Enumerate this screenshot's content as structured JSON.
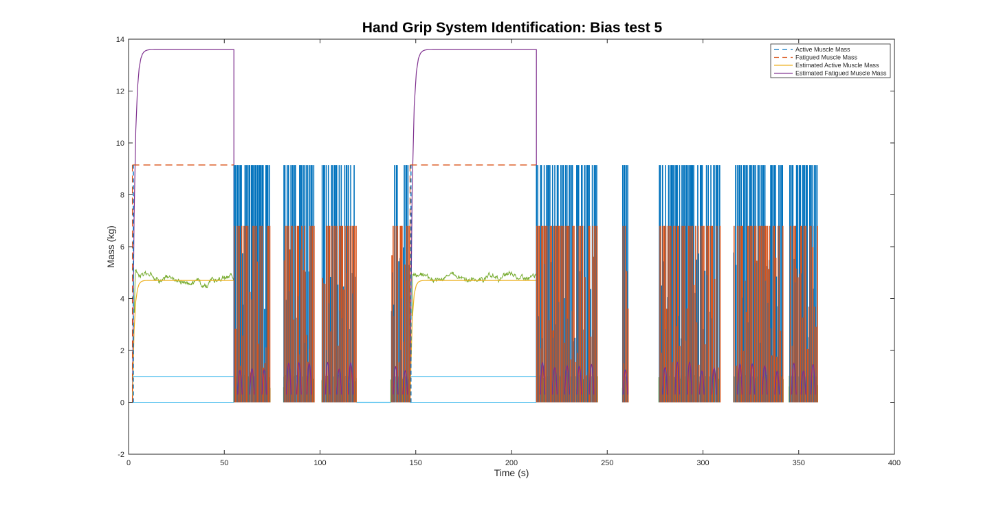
{
  "chart_data": {
    "type": "line",
    "title": "Hand Grip System Identification: Bias test 5",
    "xlabel": "Time (s)",
    "ylabel": "Mass (kg)",
    "xlim": [
      0,
      400
    ],
    "ylim": [
      -2,
      14
    ],
    "xticks": [
      0,
      50,
      100,
      150,
      200,
      250,
      300,
      350,
      400
    ],
    "yticks": [
      -2,
      0,
      2,
      4,
      6,
      8,
      10,
      12,
      14
    ],
    "grid": false,
    "legend_position": "top-right",
    "legend": [
      {
        "label": "Active Muscle Mass",
        "color": "#0072bd",
        "style": "dashed"
      },
      {
        "label": "Fatigued Muscle Mass",
        "color": "#d95319",
        "style": "dashed"
      },
      {
        "label": "Estimated Active Muscle Mass",
        "color": "#edb120",
        "style": "solid"
      },
      {
        "label": "Estimated Fatigued Muscle Mass",
        "color": "#7e2f8e",
        "style": "solid"
      }
    ],
    "extra_series_colors": {
      "measured_green": "#77ac30",
      "unlabeled_cyan": "#4dbeee"
    },
    "hold_segments": [
      {
        "start": 2,
        "end": 55,
        "estimated_fatigued": 13.6,
        "fatigued": 9.15,
        "estimated_active": 4.7,
        "unlabeled_cyan": 1.0
      },
      {
        "start": 147,
        "end": 213,
        "estimated_fatigued": 13.6,
        "fatigued": 9.15,
        "estimated_active": 4.7,
        "unlabeled_cyan": 1.0
      }
    ],
    "burst_segments": [
      {
        "start": 55,
        "end": 74
      },
      {
        "start": 81,
        "end": 97
      },
      {
        "start": 101,
        "end": 119
      },
      {
        "start": 137,
        "end": 147
      },
      {
        "start": 213,
        "end": 245
      },
      {
        "start": 258,
        "end": 261
      },
      {
        "start": 277,
        "end": 309
      },
      {
        "start": 316,
        "end": 342
      },
      {
        "start": 345,
        "end": 360
      }
    ],
    "active_peak": 9.15,
    "fatigued_peak": 6.8,
    "zero_baseline_range": [
      119,
      137
    ]
  }
}
